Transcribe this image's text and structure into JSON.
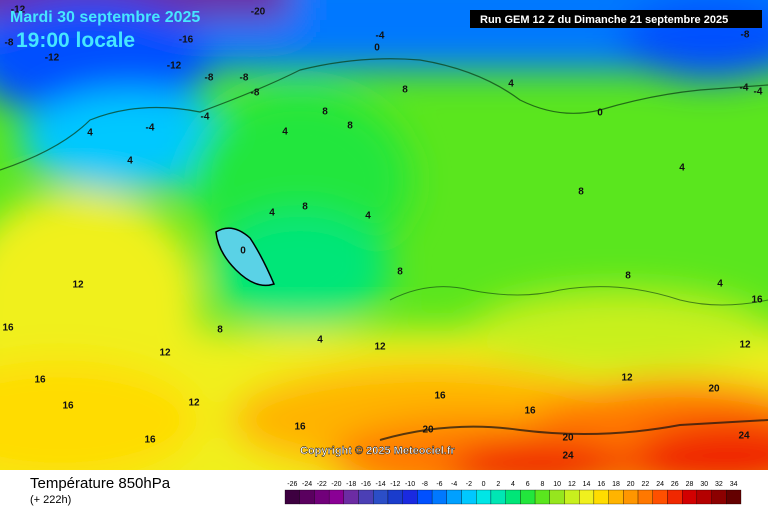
{
  "header": {
    "date": "Mardi 30 septembre 2025",
    "time": "19:00 locale",
    "run": "Run GEM 12 Z du Dimanche 21 septembre 2025"
  },
  "copyright": "Copyright © 2025 Meteociel.fr",
  "legend": {
    "title": "Température 850hPa",
    "subtitle": "(+ 222h)",
    "values": [
      -26,
      -24,
      -22,
      -20,
      -18,
      -16,
      -14,
      -12,
      -10,
      -8,
      -6,
      -4,
      -2,
      0,
      2,
      4,
      6,
      8,
      10,
      12,
      14,
      16,
      18,
      20,
      22,
      24,
      26,
      28,
      30,
      32,
      34
    ],
    "colors": [
      "#3d0040",
      "#5a005f",
      "#71007a",
      "#8a0095",
      "#6c2ca3",
      "#4b3fb5",
      "#2b4ec7",
      "#1a3ccc",
      "#1a2ae0",
      "#0050ff",
      "#0078ff",
      "#00a0ff",
      "#00c8ff",
      "#00e6e6",
      "#00e6b4",
      "#00e678",
      "#22e63c",
      "#5ae61e",
      "#96e61e",
      "#c8f01e",
      "#f0f01e",
      "#ffdc00",
      "#ffb400",
      "#ff9600",
      "#ff7800",
      "#ff5000",
      "#f02800",
      "#d20000",
      "#b40000",
      "#8c0000",
      "#640000"
    ]
  },
  "contour_labels": [
    -12,
    -20,
    -16,
    -8,
    -12,
    -12,
    -8,
    -8,
    -8,
    -4,
    0,
    -8,
    -4,
    -4,
    8,
    4,
    0,
    4,
    -4,
    -4,
    4,
    0,
    4,
    8,
    8,
    8,
    4,
    4,
    8,
    8,
    8,
    4,
    4,
    12,
    12,
    16,
    16,
    16,
    16,
    12,
    16,
    12,
    16,
    16,
    20,
    20,
    24,
    20,
    24,
    8,
    4,
    12,
    12,
    16
  ]
}
